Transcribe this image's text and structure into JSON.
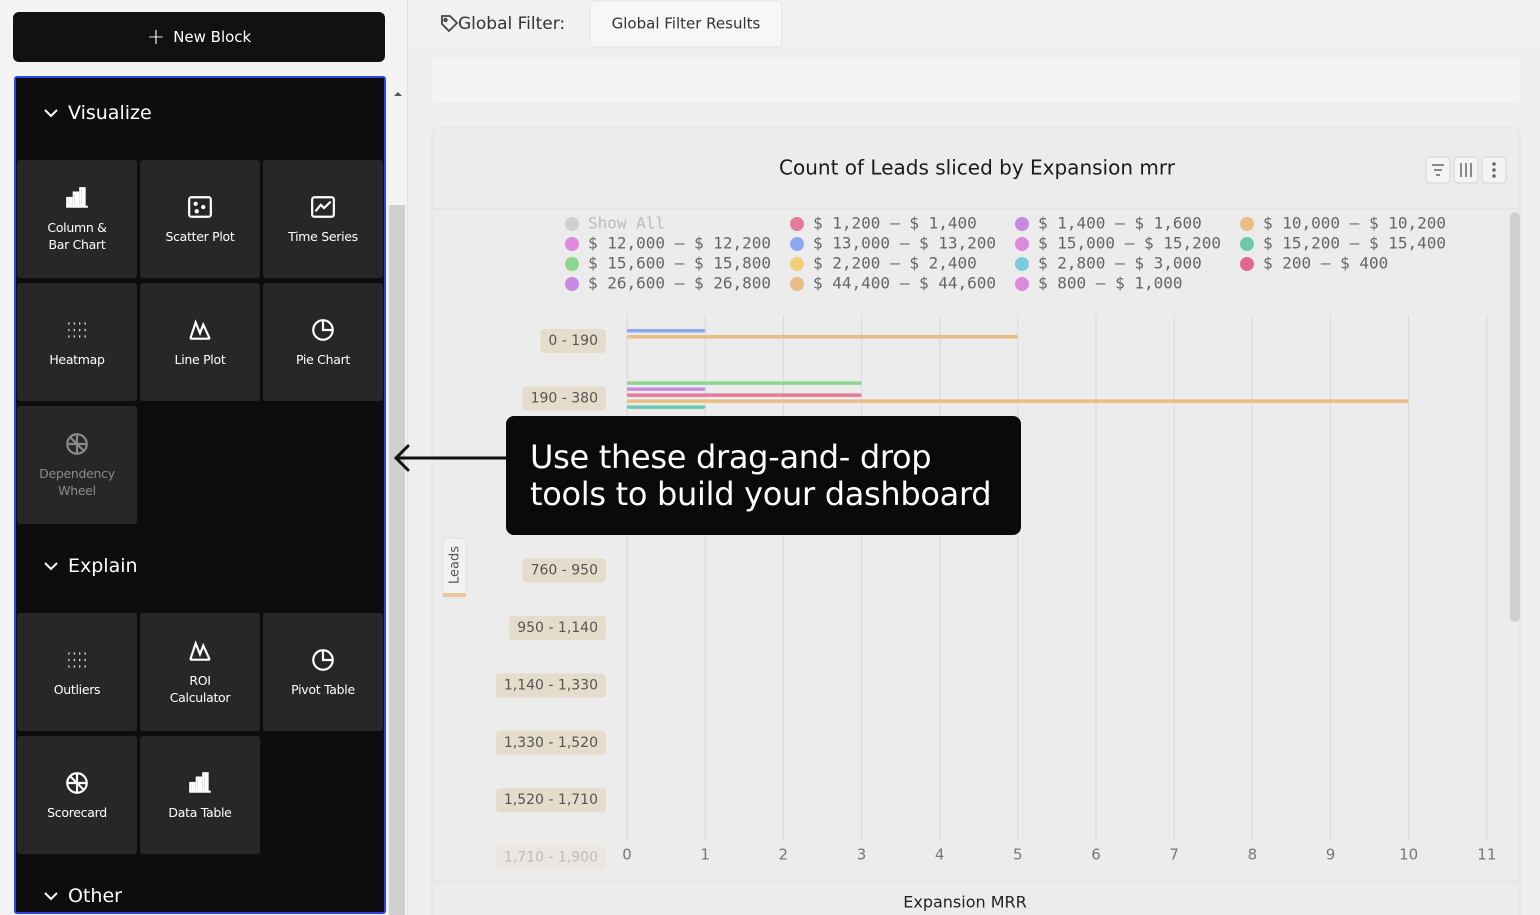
{
  "sidebar": {
    "new_block": "New Block",
    "sections": [
      {
        "title": "Visualize",
        "tools": [
          "Column &\nBar Chart",
          "Scatter Plot",
          "Time Series",
          "Heatmap",
          "Line Plot",
          "Pie Chart",
          "Dependency\nWheel"
        ]
      },
      {
        "title": "Explain",
        "tools": [
          "Outliers",
          "ROI\nCalculator",
          "Pivot Table",
          "Scorecard",
          "Data Table"
        ]
      },
      {
        "title": "Other"
      }
    ]
  },
  "header": {
    "filter_label": "Global Filter:",
    "filter_tab": "Global Filter Results"
  },
  "callout": "Use these drag-and- drop tools to build your dashboard",
  "chart_data": {
    "type": "bar",
    "horizontal": true,
    "title": "Count of Leads sliced by Expansion mrr",
    "x_label": "Expansion MRR",
    "y_label": "Leads",
    "legend_show_all": "Show All",
    "categories": [
      "0 - 190",
      "190 - 380",
      null,
      null,
      "760 - 950",
      "950 - 1,140",
      "1,140 - 1,330",
      "1,330 - 1,520",
      "1,520 - 1,710",
      "1,710 - 1,900"
    ],
    "series": [
      {
        "name": "$ 12,000 – $ 12,200",
        "color": "#dd8ade",
        "values": [
          null,
          null,
          null,
          null,
          null,
          null,
          null,
          null,
          null,
          null
        ]
      },
      {
        "name": "$ 15,600 – $ 15,800",
        "color": "#8fd48f",
        "values": [
          null,
          3,
          null,
          null,
          null,
          null,
          null,
          null,
          null,
          null
        ]
      },
      {
        "name": "$ 26,600 – $ 26,800",
        "color": "#c58be4",
        "values": [
          null,
          1,
          null,
          null,
          null,
          null,
          null,
          null,
          null,
          null
        ]
      },
      {
        "name": "$ 1,200 – $ 1,400",
        "color": "#e47b99",
        "values": [
          null,
          3,
          null,
          null,
          null,
          null,
          null,
          null,
          null,
          null
        ]
      },
      {
        "name": "$ 13,000 – $ 13,200",
        "color": "#8fa7ee",
        "values": [
          1,
          null,
          null,
          null,
          null,
          null,
          null,
          null,
          null,
          null
        ]
      },
      {
        "name": "$ 2,200 – $ 2,400",
        "color": "#eed27c",
        "values": [
          null,
          null,
          null,
          null,
          null,
          null,
          null,
          null,
          null,
          null
        ]
      },
      {
        "name": "$ 44,400 – $ 44,600",
        "color": "#ebbd86",
        "values": [
          null,
          10,
          null,
          null,
          null,
          null,
          null,
          null,
          null,
          null
        ]
      },
      {
        "name": "$ 1,400 – $ 1,600",
        "color": "#c58be4",
        "values": [
          null,
          null,
          null,
          null,
          null,
          null,
          null,
          null,
          null,
          null
        ]
      },
      {
        "name": "$ 15,000 – $ 15,200",
        "color": "#dd8ade",
        "values": [
          null,
          null,
          null,
          null,
          null,
          null,
          null,
          null,
          null,
          null
        ]
      },
      {
        "name": "$ 2,800 – $ 3,000",
        "color": "#7bcadd",
        "values": [
          null,
          null,
          null,
          null,
          null,
          null,
          null,
          null,
          null,
          null
        ]
      },
      {
        "name": "$ 800 – $ 1,000",
        "color": "#dd8ade",
        "values": [
          null,
          null,
          null,
          null,
          null,
          null,
          null,
          null,
          null,
          null
        ]
      },
      {
        "name": "$ 10,000 – $ 10,200",
        "color": "#ebbd86",
        "values": [
          5,
          null,
          null,
          null,
          null,
          null,
          null,
          null,
          null,
          null
        ]
      },
      {
        "name": "$ 15,200 – $ 15,400",
        "color": "#6cc8a9",
        "values": [
          null,
          1,
          null,
          null,
          null,
          null,
          null,
          null,
          null,
          null
        ]
      },
      {
        "name": "$ 200 – $ 400",
        "color": "#e06a8b",
        "values": [
          null,
          null,
          null,
          null,
          null,
          null,
          null,
          null,
          null,
          null
        ]
      }
    ],
    "xlim": [
      0,
      11.13
    ],
    "xticks": [
      0,
      1,
      2,
      3,
      4,
      5,
      6,
      7,
      8,
      9,
      10,
      11
    ],
    "grid": true
  }
}
